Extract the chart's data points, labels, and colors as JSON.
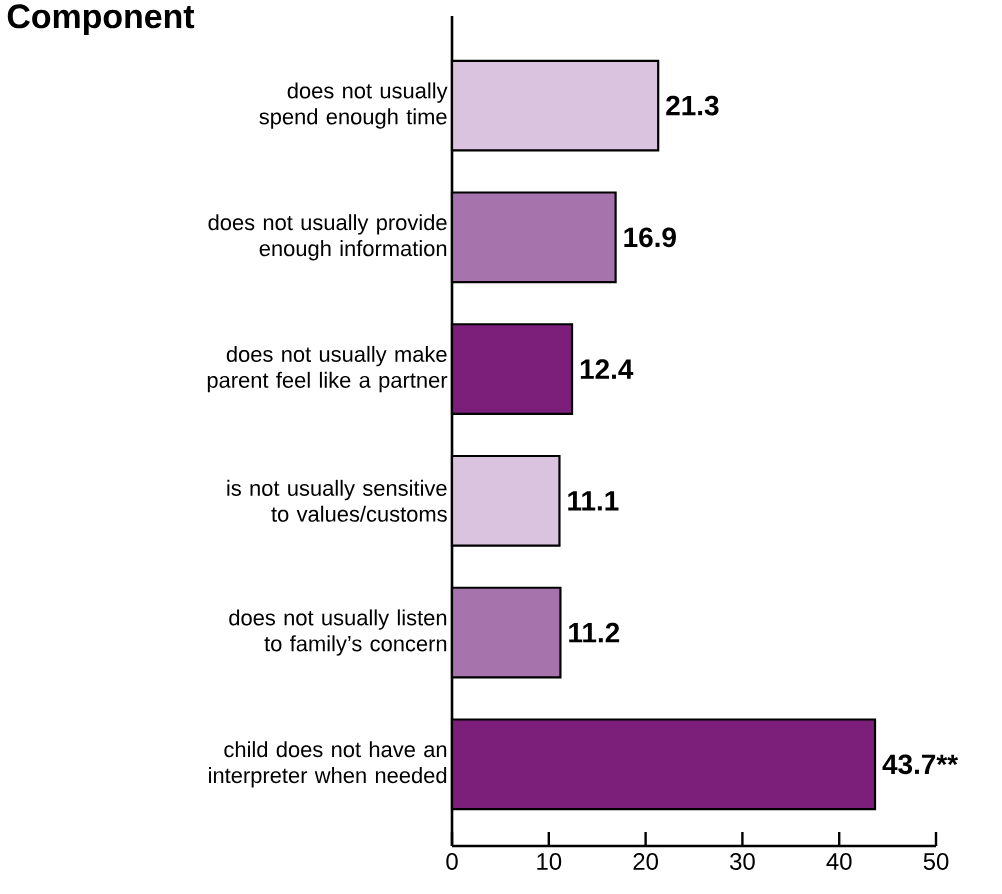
{
  "chart_data": {
    "type": "bar",
    "orientation": "horizontal",
    "title": "Component",
    "categories": [
      "does not usually spend enough time",
      "does not usually provide enough information",
      "does not usually make parent feel like a partner",
      "is not usually sensitive to values/customs",
      "does not usually listen to family’s concern",
      "child does not have an interpreter when needed"
    ],
    "values": [
      21.3,
      16.9,
      12.4,
      11.1,
      11.2,
      43.7
    ],
    "colors": [
      "#d9c3df",
      "#a673ad",
      "#7b1f7b",
      "#d9c3df",
      "#a673ad",
      "#7b1f7b"
    ],
    "value_labels": [
      "21.3",
      "16.9",
      "12.4",
      "11.1",
      "11.2",
      "43.7**"
    ],
    "xlim": [
      0,
      50
    ],
    "xticks": [
      0,
      10,
      20,
      30,
      40,
      50
    ]
  }
}
